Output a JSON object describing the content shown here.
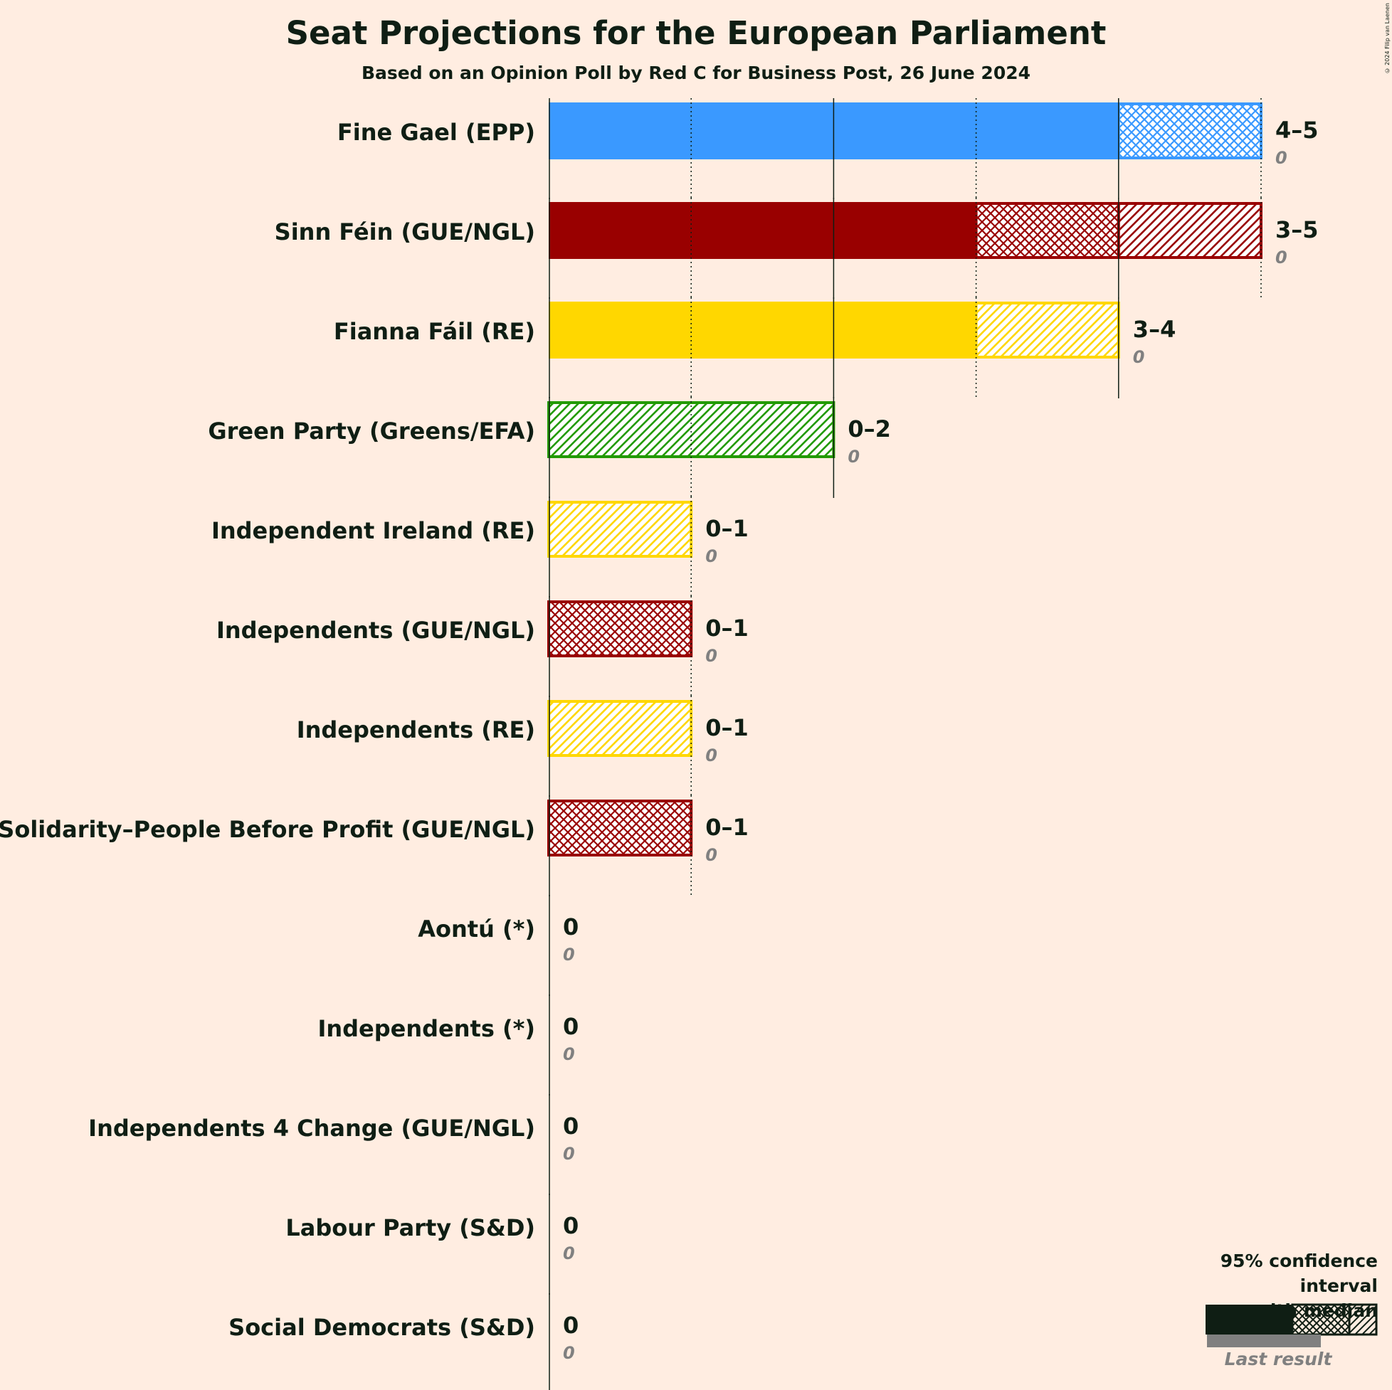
{
  "title": "Seat Projections for the European Parliament",
  "subtitle": "Based on an Opinion Poll by Red C for Business Post, 26 June 2024",
  "copyright": "© 2024 Filip van Laenen",
  "legend": {
    "line1": "95% confidence interval",
    "line2": "with median",
    "last_result": "Last result"
  },
  "chart_data": {
    "type": "bar",
    "orientation": "horizontal",
    "title": "Seat Projections for the European Parliament",
    "xlim": [
      0,
      5
    ],
    "series_keys": [
      "low",
      "median",
      "high",
      "last_result"
    ],
    "parties": [
      {
        "name": "Fine Gael (EPP)",
        "low": 4,
        "median": 5,
        "high": 5,
        "last_result": 0,
        "range": "4–5",
        "last": "0",
        "color": "#3A99FF"
      },
      {
        "name": "Sinn Féin (GUE/NGL)",
        "low": 3,
        "median": 4,
        "high": 5,
        "last_result": 0,
        "range": "3–5",
        "last": "0",
        "color": "#990000"
      },
      {
        "name": "Fianna Fáil (RE)",
        "low": 3,
        "median": 3,
        "high": 4,
        "last_result": 0,
        "range": "3–4",
        "last": "0",
        "color": "#FFD700"
      },
      {
        "name": "Green Party (Greens/EFA)",
        "low": 0,
        "median": 0,
        "high": 2,
        "last_result": 0,
        "range": "0–2",
        "last": "0",
        "color": "#229A00"
      },
      {
        "name": "Independent Ireland (RE)",
        "low": 0,
        "median": 0,
        "high": 1,
        "last_result": 0,
        "range": "0–1",
        "last": "0",
        "color": "#FFD700"
      },
      {
        "name": "Independents (GUE/NGL)",
        "low": 0,
        "median": 1,
        "high": 1,
        "last_result": 0,
        "range": "0–1",
        "last": "0",
        "color": "#990000"
      },
      {
        "name": "Independents (RE)",
        "low": 0,
        "median": 0,
        "high": 1,
        "last_result": 0,
        "range": "0–1",
        "last": "0",
        "color": "#FFD700"
      },
      {
        "name": "Solidarity–People Before Profit (GUE/NGL)",
        "low": 0,
        "median": 1,
        "high": 1,
        "last_result": 0,
        "range": "0–1",
        "last": "0",
        "color": "#990000"
      },
      {
        "name": "Aontú (*)",
        "low": 0,
        "median": 0,
        "high": 0,
        "last_result": 0,
        "range": "0",
        "last": "0",
        "color": "#0F1E14"
      },
      {
        "name": "Independents (*)",
        "low": 0,
        "median": 0,
        "high": 0,
        "last_result": 0,
        "range": "0",
        "last": "0",
        "color": "#0F1E14"
      },
      {
        "name": "Independents 4 Change (GUE/NGL)",
        "low": 0,
        "median": 0,
        "high": 0,
        "last_result": 0,
        "range": "0",
        "last": "0",
        "color": "#0F1E14"
      },
      {
        "name": "Labour Party (S&D)",
        "low": 0,
        "median": 0,
        "high": 0,
        "last_result": 0,
        "range": "0",
        "last": "0",
        "color": "#0F1E14"
      },
      {
        "name": "Social Democrats (S&D)",
        "low": 0,
        "median": 0,
        "high": 0,
        "last_result": 0,
        "range": "0",
        "last": "0",
        "color": "#0F1E14"
      }
    ]
  }
}
